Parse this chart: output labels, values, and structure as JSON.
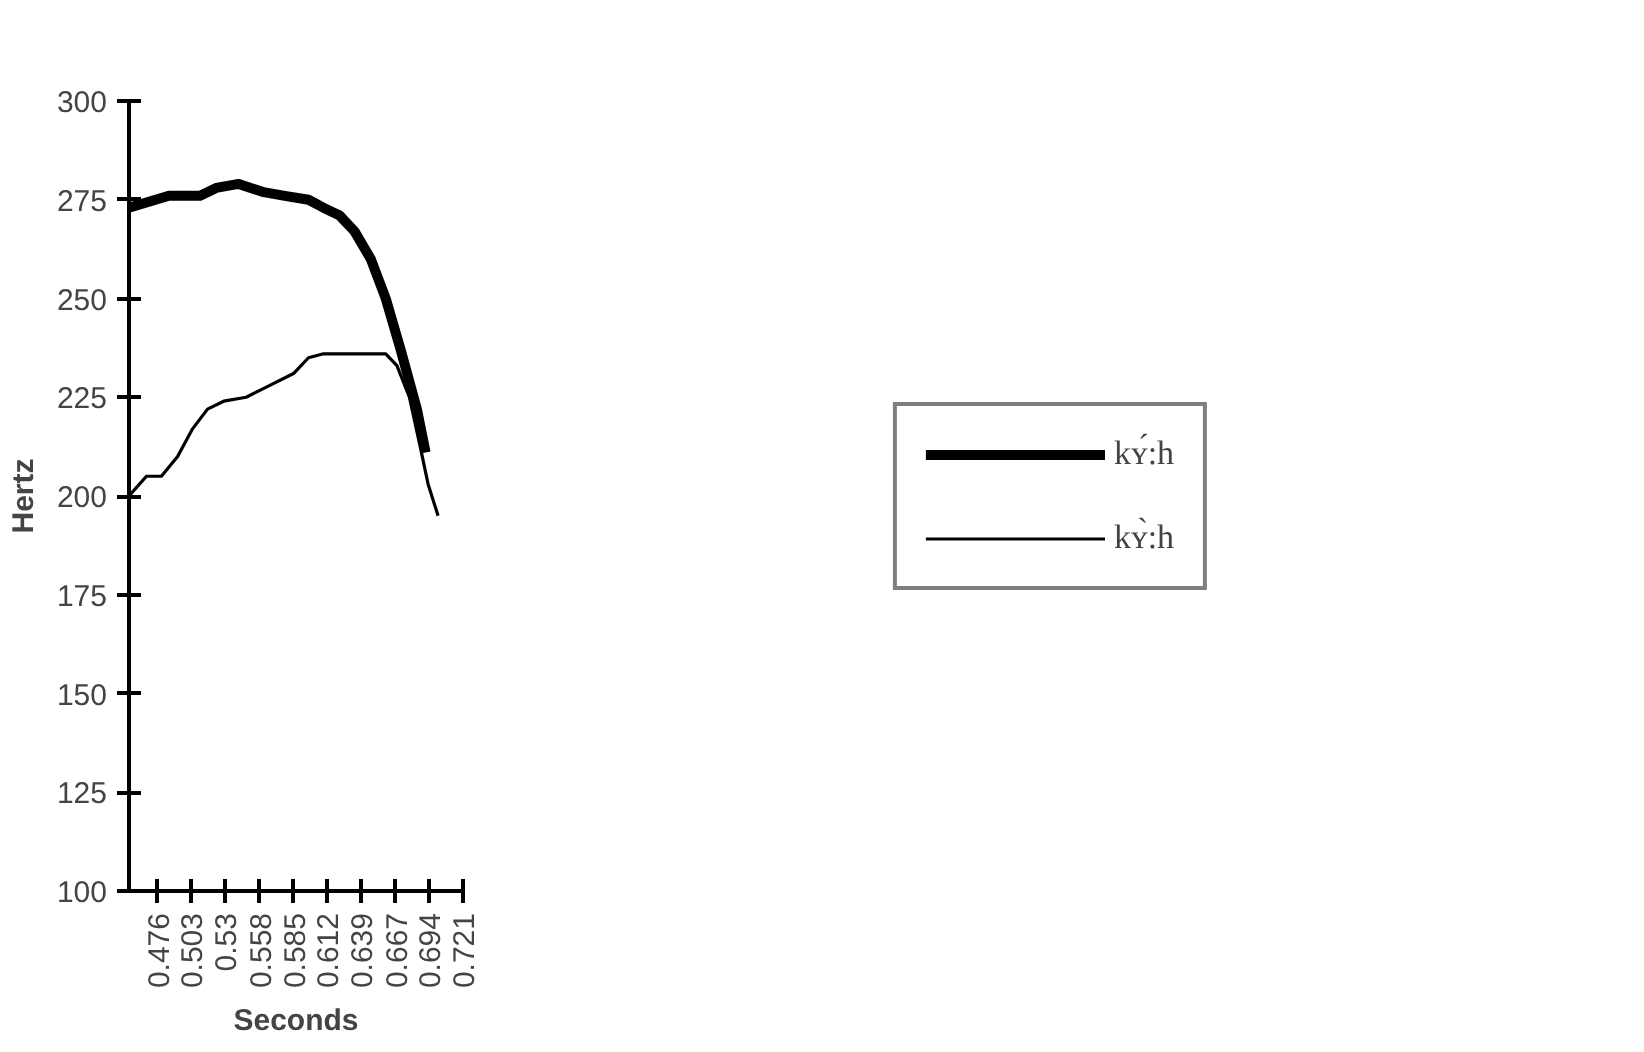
{
  "chart_data": {
    "type": "line",
    "xlabel": "Seconds",
    "ylabel": "Hertz",
    "xlim": [
      0.453,
      0.721
    ],
    "xticks": [
      0.476,
      0.503,
      0.53,
      0.558,
      0.585,
      0.612,
      0.639,
      0.667,
      0.694,
      0.721
    ],
    "ylim": [
      100,
      300
    ],
    "yticks": [
      100,
      125,
      150,
      175,
      200,
      225,
      250,
      275,
      300
    ],
    "grid": false,
    "legend": "right",
    "marker": "none",
    "series": [
      {
        "name": "kʏ́:h",
        "color": "#000000",
        "x": [
          0.453,
          0.485,
          0.51,
          0.523,
          0.541,
          0.56,
          0.578,
          0.597,
          0.609,
          0.622,
          0.634,
          0.647,
          0.659,
          0.671,
          0.684,
          0.691
        ],
        "values": [
          273,
          276,
          276,
          278,
          279,
          277,
          276,
          275,
          273,
          271,
          267,
          260,
          250,
          237,
          222,
          211
        ]
      },
      {
        "name": "kʏ̀:h",
        "color": "#000000",
        "x": [
          0.453,
          0.467,
          0.479,
          0.492,
          0.504,
          0.516,
          0.529,
          0.547,
          0.566,
          0.585,
          0.597,
          0.609,
          0.634,
          0.659,
          0.668,
          0.678,
          0.687,
          0.693,
          0.701
        ],
        "values": [
          200,
          205,
          205,
          210,
          217,
          222,
          224,
          225,
          228,
          231,
          235,
          236,
          236,
          236,
          233,
          225,
          212,
          203,
          195
        ]
      }
    ]
  }
}
